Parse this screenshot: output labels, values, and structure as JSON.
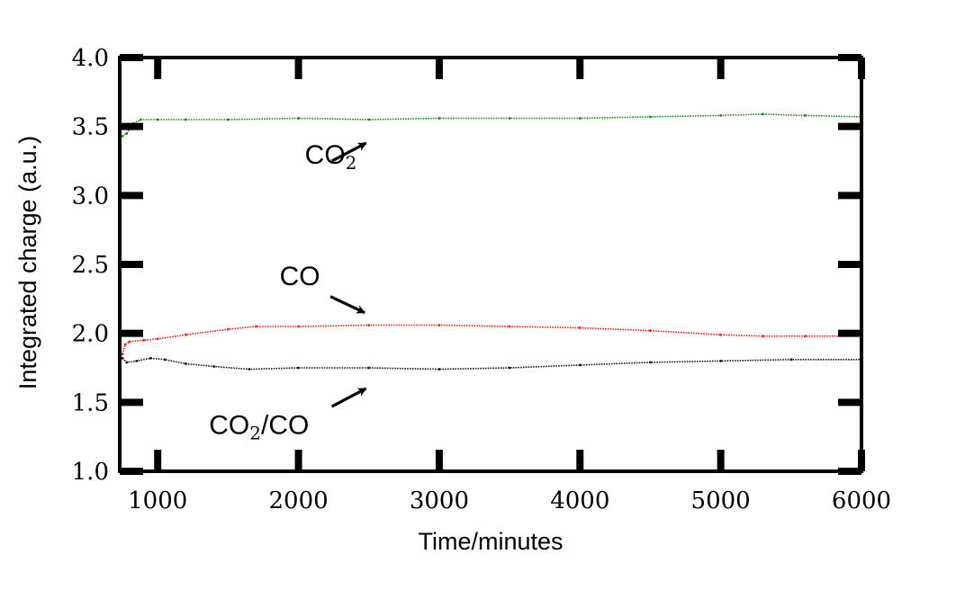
{
  "chart_data": {
    "type": "scatter",
    "xlabel": "Time/minutes",
    "ylabel": "Integrated charge (a.u.)",
    "xlim": [
      730,
      6000
    ],
    "ylim": [
      1.0,
      4.0
    ],
    "xticks": [
      1000,
      2000,
      3000,
      4000,
      5000,
      6000
    ],
    "xtick_labels": [
      "1000",
      "2000",
      "3000",
      "4000",
      "5000",
      "6000"
    ],
    "yticks": [
      1.0,
      1.5,
      2.0,
      2.5,
      3.0,
      3.5,
      4.0
    ],
    "ytick_labels": [
      "1.0",
      "1.5",
      "2.0",
      "2.5",
      "3.0",
      "3.5",
      "4.0"
    ],
    "grid": false,
    "series": [
      {
        "name": "CO2",
        "color": "#1a8a1a",
        "x": [
          750,
          780,
          820,
          880,
          1000,
          1200,
          1500,
          2000,
          2500,
          3000,
          3500,
          4000,
          4500,
          5000,
          5300,
          5600,
          6000
        ],
        "y": [
          3.43,
          3.45,
          3.52,
          3.55,
          3.55,
          3.55,
          3.55,
          3.56,
          3.55,
          3.56,
          3.56,
          3.56,
          3.57,
          3.58,
          3.59,
          3.58,
          3.57
        ]
      },
      {
        "name": "CO",
        "color": "#e8201c",
        "x": [
          750,
          770,
          800,
          900,
          1000,
          1200,
          1500,
          1700,
          2000,
          2500,
          3000,
          3500,
          4000,
          4500,
          5000,
          5300,
          5600,
          6000
        ],
        "y": [
          1.85,
          1.92,
          1.94,
          1.95,
          1.96,
          1.99,
          2.03,
          2.05,
          2.05,
          2.06,
          2.06,
          2.05,
          2.04,
          2.02,
          1.99,
          1.98,
          1.98,
          1.98
        ]
      },
      {
        "name": "CO2/CO",
        "color": "#1a1a1a",
        "x": [
          750,
          780,
          850,
          950,
          1050,
          1200,
          1400,
          1650,
          2000,
          2500,
          3000,
          3500,
          4000,
          4500,
          5000,
          5500,
          6000
        ],
        "y": [
          1.82,
          1.79,
          1.8,
          1.82,
          1.81,
          1.78,
          1.76,
          1.74,
          1.75,
          1.75,
          1.74,
          1.75,
          1.77,
          1.79,
          1.8,
          1.81,
          1.81
        ]
      }
    ],
    "annotations": [
      {
        "text": "CO",
        "subscript": "2",
        "x": 2230,
        "y": 3.23,
        "arrow_to": [
          2480,
          3.38
        ]
      },
      {
        "text": "CO",
        "subscript": "",
        "x": 2010,
        "y": 2.35,
        "arrow_to": [
          2470,
          2.15
        ]
      },
      {
        "text": "CO",
        "subscript": "2",
        "suffix": "/CO",
        "x": 1720,
        "y": 1.27,
        "arrow_to": [
          2480,
          1.6
        ]
      }
    ]
  }
}
